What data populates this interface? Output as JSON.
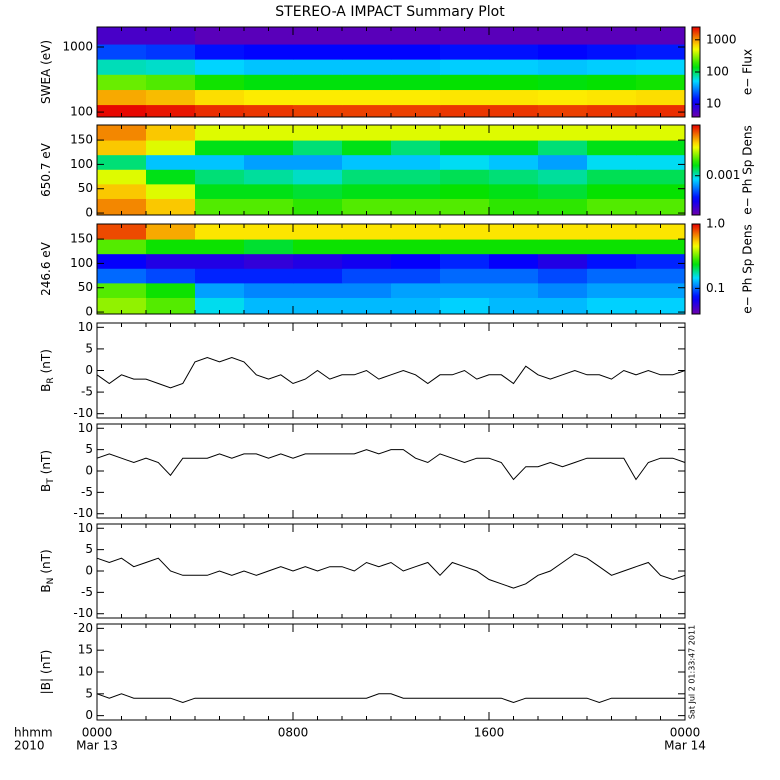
{
  "title": "STEREO-A IMPACT Summary Plot",
  "timestamp": "Sat Jul  2 01:33:47 2011",
  "x_axis": {
    "xlim": [
      0,
      24
    ],
    "xticks": [
      {
        "value": 0,
        "label": "0000"
      },
      {
        "value": 8,
        "label": "0800"
      },
      {
        "value": 16,
        "label": "1600"
      },
      {
        "value": 24,
        "label": "0000"
      }
    ],
    "minor_ticks": [
      0,
      1,
      2,
      3,
      4,
      5,
      6,
      7,
      8,
      9,
      10,
      11,
      12,
      13,
      14,
      15,
      16,
      17,
      18,
      19,
      20,
      21,
      22,
      23,
      24
    ],
    "dates": [
      {
        "value": 0,
        "label": "Mar 13"
      },
      {
        "value": 24,
        "label": "Mar 14"
      }
    ],
    "unit_label": "hhmm",
    "year_label": "2010",
    "times": [
      0,
      0.5,
      1,
      1.5,
      2,
      2.5,
      3,
      3.5,
      4,
      4.5,
      5,
      5.5,
      6,
      6.5,
      7,
      7.5,
      8,
      8.5,
      9,
      9.5,
      10,
      10.5,
      11,
      11.5,
      12,
      12.5,
      13,
      13.5,
      14,
      14.5,
      15,
      15.5,
      16,
      16.5,
      17,
      17.5,
      18,
      18.5,
      19,
      19.5,
      20,
      20.5,
      21,
      21.5,
      22,
      22.5,
      23,
      23.5,
      24
    ]
  },
  "chart_data": [
    {
      "type": "heatmap",
      "ylabel": "SWEA (eV)",
      "ylog": true,
      "ylim": [
        84,
        2030
      ],
      "yticks": [
        100,
        1000
      ],
      "x": [
        1,
        3,
        5,
        7,
        9,
        11,
        13,
        15,
        17,
        19,
        21,
        23
      ],
      "y": [
        100,
        170,
        290,
        500,
        850,
        1450
      ],
      "values": [
        [
          2400,
          2200,
          1900,
          1800,
          1700,
          1700,
          1700,
          1800,
          1800,
          1700,
          1800,
          1900
        ],
        [
          900,
          800,
          650,
          600,
          600,
          600,
          600,
          620,
          620,
          600,
          620,
          650
        ],
        [
          250,
          220,
          160,
          140,
          140,
          140,
          140,
          150,
          150,
          140,
          150,
          160
        ],
        [
          70,
          65,
          50,
          45,
          45,
          45,
          45,
          48,
          48,
          45,
          48,
          50
        ],
        [
          20,
          18,
          14,
          13,
          13,
          13,
          13,
          14,
          14,
          13,
          14,
          15
        ],
        [
          6,
          6,
          5,
          5,
          5,
          5,
          5,
          5,
          5,
          5,
          5,
          5
        ]
      ],
      "colormap": "rainbow",
      "zlog": true,
      "zlim": [
        4,
        2500
      ],
      "zticks": [
        10,
        100,
        1000
      ],
      "zlabel": "e− Flux"
    },
    {
      "type": "heatmap",
      "ylabel": "650.7 eV",
      "ylog": false,
      "ylim": [
        -4,
        181
      ],
      "yticks": [
        0,
        50,
        100,
        150
      ],
      "x": [
        1,
        3,
        5,
        7,
        9,
        11,
        13,
        15,
        17,
        19,
        21,
        23
      ],
      "y": [
        15,
        45,
        75,
        105,
        135,
        165
      ],
      "values": [
        [
          0.005,
          0.004,
          0.002,
          0.002,
          0.0018,
          0.002,
          0.002,
          0.002,
          0.0018,
          0.0018,
          0.002,
          0.002
        ],
        [
          0.004,
          0.003,
          0.0015,
          0.0015,
          0.0014,
          0.0015,
          0.0015,
          0.0016,
          0.0015,
          0.0014,
          0.0016,
          0.0016
        ],
        [
          0.003,
          0.0015,
          0.0012,
          0.0011,
          0.001,
          0.0012,
          0.0012,
          0.0013,
          0.0012,
          0.0011,
          0.0013,
          0.0013
        ],
        [
          0.0012,
          0.0008,
          0.0008,
          0.0007,
          0.0007,
          0.0008,
          0.0008,
          0.0009,
          0.0008,
          0.0007,
          0.0009,
          0.0009
        ],
        [
          0.004,
          0.003,
          0.0015,
          0.0015,
          0.0012,
          0.0015,
          0.0012,
          0.0015,
          0.0015,
          0.0012,
          0.0015,
          0.0015
        ],
        [
          0.005,
          0.004,
          0.003,
          0.003,
          0.003,
          0.003,
          0.003,
          0.003,
          0.003,
          0.003,
          0.003,
          0.003
        ]
      ],
      "colormap": "rainbow",
      "zlog": true,
      "zlim": [
        0.0002,
        0.008
      ],
      "zticks": [
        0.001
      ],
      "zlabel": "e− Ph Sp Dens"
    },
    {
      "type": "heatmap",
      "ylabel": "246.6 eV",
      "ylog": false,
      "ylim": [
        -4,
        181
      ],
      "yticks": [
        0,
        50,
        100,
        150
      ],
      "x": [
        1,
        3,
        5,
        7,
        9,
        11,
        13,
        15,
        17,
        19,
        21,
        23
      ],
      "y": [
        15,
        45,
        75,
        105,
        135,
        165
      ],
      "values": [
        [
          0.35,
          0.3,
          0.15,
          0.13,
          0.13,
          0.13,
          0.13,
          0.14,
          0.13,
          0.13,
          0.14,
          0.14
        ],
        [
          0.3,
          0.25,
          0.12,
          0.11,
          0.11,
          0.11,
          0.12,
          0.12,
          0.12,
          0.11,
          0.12,
          0.12
        ],
        [
          0.1,
          0.09,
          0.08,
          0.08,
          0.08,
          0.09,
          0.09,
          0.1,
          0.1,
          0.09,
          0.1,
          0.1
        ],
        [
          0.07,
          0.06,
          0.06,
          0.055,
          0.06,
          0.065,
          0.07,
          0.08,
          0.07,
          0.06,
          0.075,
          0.08
        ],
        [
          0.3,
          0.25,
          0.25,
          0.22,
          0.25,
          0.25,
          0.25,
          0.25,
          0.25,
          0.25,
          0.25,
          0.25
        ],
        [
          0.8,
          0.6,
          0.5,
          0.5,
          0.5,
          0.5,
          0.5,
          0.5,
          0.5,
          0.5,
          0.5,
          0.5
        ]
      ],
      "colormap": "rainbow",
      "zlog": true,
      "zlim": [
        0.04,
        1.0
      ],
      "zticks": [
        0.1,
        {
          "value": 1,
          "label": "1.0"
        }
      ],
      "zlabel": "e− Ph Sp Dens"
    },
    {
      "type": "line",
      "ylabel": "B",
      "ylabel_sub": "R",
      "ylabel_unit": "(nT)",
      "ylim": [
        -11,
        11
      ],
      "yticks": [
        -10,
        -5,
        0,
        5,
        10
      ],
      "color": "#000000",
      "values": [
        -1,
        -3,
        -1,
        -2,
        -2,
        -3,
        -4,
        -3,
        2,
        3,
        2,
        3,
        2,
        -1,
        -2,
        -1,
        -3,
        -2,
        0,
        -2,
        -1,
        -1,
        0,
        -2,
        -1,
        0,
        -1,
        -3,
        -1,
        -1,
        0,
        -2,
        -1,
        -1,
        -3,
        1,
        -1,
        -2,
        -1,
        0,
        -1,
        -1,
        -2,
        0,
        -1,
        0,
        -1,
        -1,
        0
      ]
    },
    {
      "type": "line",
      "ylabel": "B",
      "ylabel_sub": "T",
      "ylabel_unit": "(nT)",
      "ylim": [
        -11,
        11
      ],
      "yticks": [
        -10,
        -5,
        0,
        5,
        10
      ],
      "color": "#000000",
      "values": [
        3,
        4,
        3,
        2,
        3,
        2,
        -1,
        3,
        3,
        3,
        4,
        3,
        4,
        4,
        3,
        4,
        3,
        4,
        4,
        4,
        4,
        4,
        5,
        4,
        5,
        5,
        3,
        2,
        4,
        3,
        2,
        3,
        3,
        2,
        -2,
        1,
        1,
        2,
        1,
        2,
        3,
        3,
        3,
        3,
        -2,
        2,
        3,
        3,
        2
      ]
    },
    {
      "type": "line",
      "ylabel": "B",
      "ylabel_sub": "N",
      "ylabel_unit": "(nT)",
      "ylim": [
        -11,
        11
      ],
      "yticks": [
        -10,
        -5,
        0,
        5,
        10
      ],
      "color": "#000000",
      "values": [
        3,
        2,
        3,
        1,
        2,
        3,
        0,
        -1,
        -1,
        -1,
        0,
        -1,
        0,
        -1,
        0,
        1,
        0,
        1,
        0,
        1,
        1,
        0,
        2,
        1,
        2,
        0,
        1,
        2,
        -1,
        2,
        1,
        0,
        -2,
        -3,
        -4,
        -3,
        -1,
        0,
        2,
        4,
        3,
        1,
        -1,
        0,
        1,
        2,
        -1,
        -2,
        -1
      ]
    },
    {
      "type": "line",
      "ylabel": "|B|",
      "ylabel_unit": "(nT)",
      "ylim": [
        -1,
        21
      ],
      "yticks": [
        0,
        5,
        10,
        15,
        20
      ],
      "color": "#000000",
      "values": [
        5,
        4,
        5,
        4,
        4,
        4,
        4,
        3,
        4,
        4,
        4,
        4,
        4,
        4,
        4,
        4,
        4,
        4,
        4,
        4,
        4,
        4,
        4,
        5,
        5,
        4,
        4,
        4,
        4,
        4,
        4,
        4,
        4,
        4,
        3,
        4,
        4,
        4,
        4,
        4,
        4,
        3,
        4,
        4,
        4,
        4,
        4,
        4,
        4
      ]
    }
  ]
}
